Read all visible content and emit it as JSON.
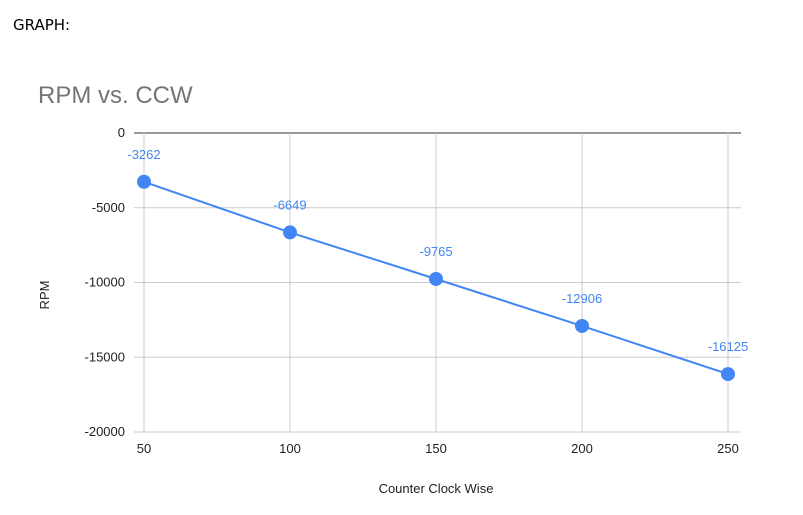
{
  "page": {
    "label": "GRAPH:"
  },
  "chart_data": {
    "type": "line",
    "title": "RPM vs. CCW",
    "xlabel": "Counter Clock Wise",
    "ylabel": "RPM",
    "x": [
      50,
      100,
      150,
      200,
      250
    ],
    "series": [
      {
        "values": [
          -3262,
          -6649,
          -9765,
          -12906,
          -16125
        ],
        "color": "#4285f4"
      }
    ],
    "data_labels": [
      "-3262",
      "-6649",
      "-9765",
      "-12906",
      "-16125"
    ],
    "x_ticks": [
      "50",
      "100",
      "150",
      "200",
      "250"
    ],
    "y_ticks": [
      "0",
      "-5000",
      "-10000",
      "-15000",
      "-20000"
    ],
    "ylim": [
      -20000,
      0
    ],
    "xlim": [
      50,
      250
    ],
    "grid": true,
    "legend": "none"
  }
}
